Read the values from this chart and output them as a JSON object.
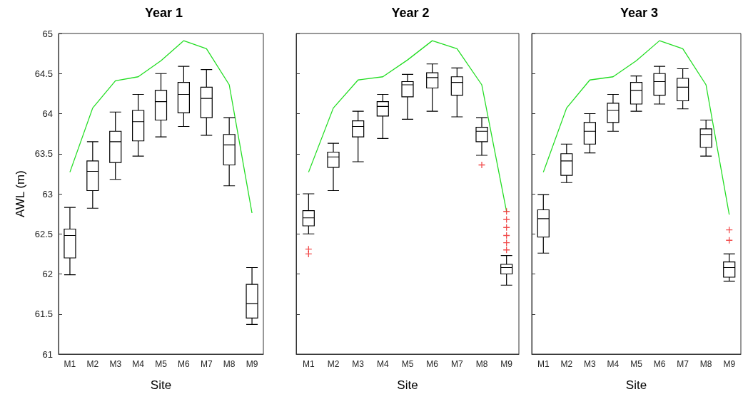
{
  "chart_data": [
    {
      "type": "box",
      "title": "Year 1",
      "xlabel": "Site",
      "ylabel": "AWL (m)",
      "categories": [
        "M1",
        "M2",
        "M3",
        "M4",
        "M5",
        "M6",
        "M7",
        "M8",
        "M9"
      ],
      "ylim": [
        61,
        65
      ],
      "yticks": [
        61,
        61.5,
        62,
        62.5,
        63,
        63.5,
        64,
        64.5,
        65
      ],
      "marker": "none",
      "series": [
        {
          "color": "#000000",
          "boxes": [
            {
              "low": 61.99,
              "q1": 62.2,
              "median": 62.48,
              "q3": 62.56,
              "high": 62.83
            },
            {
              "low": 62.82,
              "q1": 63.04,
              "median": 63.28,
              "q3": 63.41,
              "high": 63.65
            },
            {
              "low": 63.18,
              "q1": 63.39,
              "median": 63.65,
              "q3": 63.78,
              "high": 64.02
            },
            {
              "low": 63.47,
              "q1": 63.66,
              "median": 63.9,
              "q3": 64.04,
              "high": 64.24
            },
            {
              "low": 63.71,
              "q1": 63.92,
              "median": 64.15,
              "q3": 64.29,
              "high": 64.5
            },
            {
              "low": 63.84,
              "q1": 64.01,
              "median": 64.24,
              "q3": 64.39,
              "high": 64.59
            },
            {
              "low": 63.73,
              "q1": 63.95,
              "median": 64.19,
              "q3": 64.33,
              "high": 64.55
            },
            {
              "low": 63.1,
              "q1": 63.36,
              "median": 63.61,
              "q3": 63.74,
              "high": 63.95
            },
            {
              "low": 61.37,
              "q1": 61.45,
              "median": 61.63,
              "q3": 61.87,
              "high": 62.08
            }
          ]
        },
        {
          "type": "line",
          "color": "#22dd22",
          "values": [
            63.27,
            64.07,
            64.41,
            64.46,
            64.66,
            64.91,
            64.81,
            64.36,
            62.76
          ]
        }
      ]
    },
    {
      "type": "box",
      "title": "Year 2",
      "xlabel": "Site",
      "categories": [
        "M1",
        "M2",
        "M3",
        "M4",
        "M5",
        "M6",
        "M7",
        "M8",
        "M9"
      ],
      "ylim": [
        61,
        65
      ],
      "yticks": [
        61,
        61.5,
        62,
        62.5,
        63,
        63.5,
        64,
        64.5,
        65
      ],
      "tick_labels": "x",
      "marker": "none",
      "series": [
        {
          "color": "#000000",
          "boxes": [
            {
              "low": 62.5,
              "q1": 62.6,
              "median": 62.7,
              "q3": 62.79,
              "high": 63.0
            },
            {
              "low": 63.04,
              "q1": 63.33,
              "median": 63.46,
              "q3": 63.52,
              "high": 63.63
            },
            {
              "low": 63.4,
              "q1": 63.71,
              "median": 63.84,
              "q3": 63.91,
              "high": 64.03
            },
            {
              "low": 63.69,
              "q1": 63.97,
              "median": 64.09,
              "q3": 64.15,
              "high": 64.24
            },
            {
              "low": 63.93,
              "q1": 64.21,
              "median": 64.36,
              "q3": 64.4,
              "high": 64.49
            },
            {
              "low": 64.03,
              "q1": 64.32,
              "median": 64.45,
              "q3": 64.51,
              "high": 64.62
            },
            {
              "low": 63.96,
              "q1": 64.23,
              "median": 64.39,
              "q3": 64.46,
              "high": 64.57
            },
            {
              "low": 63.48,
              "q1": 63.65,
              "median": 63.78,
              "q3": 63.83,
              "high": 63.95
            },
            {
              "low": 61.86,
              "q1": 62.0,
              "median": 62.08,
              "q3": 62.12,
              "high": 62.23
            }
          ]
        },
        {
          "type": "line",
          "color": "#22dd22",
          "values": [
            63.27,
            64.07,
            64.42,
            64.46,
            64.67,
            64.91,
            64.81,
            64.36,
            62.78
          ]
        },
        {
          "type": "scatter",
          "color": "#ee2222",
          "marker": "cross",
          "x": [
            "M1",
            "M1",
            "M8",
            "M9",
            "M9",
            "M9",
            "M9",
            "M9",
            "M9"
          ],
          "values": [
            62.31,
            62.25,
            63.36,
            62.78,
            62.68,
            62.58,
            62.48,
            62.39,
            62.3
          ]
        }
      ]
    },
    {
      "type": "box",
      "title": "Year 3",
      "xlabel": "Site",
      "categories": [
        "M1",
        "M2",
        "M3",
        "M4",
        "M5",
        "M6",
        "M7",
        "M8",
        "M9"
      ],
      "ylim": [
        61,
        65
      ],
      "yticks": [
        61,
        61.5,
        62,
        62.5,
        63,
        63.5,
        64,
        64.5,
        65
      ],
      "tick_labels": "x",
      "marker": "none",
      "series": [
        {
          "color": "#000000",
          "boxes": [
            {
              "low": 62.26,
              "q1": 62.46,
              "median": 62.69,
              "q3": 62.8,
              "high": 62.99
            },
            {
              "low": 63.14,
              "q1": 63.23,
              "median": 63.41,
              "q3": 63.5,
              "high": 63.62
            },
            {
              "low": 63.51,
              "q1": 63.62,
              "median": 63.78,
              "q3": 63.89,
              "high": 64.0
            },
            {
              "low": 63.78,
              "q1": 63.89,
              "median": 64.04,
              "q3": 64.13,
              "high": 64.24
            },
            {
              "low": 64.03,
              "q1": 64.12,
              "median": 64.29,
              "q3": 64.39,
              "high": 64.47
            },
            {
              "low": 64.12,
              "q1": 64.23,
              "median": 64.4,
              "q3": 64.5,
              "high": 64.59
            },
            {
              "low": 64.06,
              "q1": 64.16,
              "median": 64.33,
              "q3": 64.44,
              "high": 64.56
            },
            {
              "low": 63.47,
              "q1": 63.58,
              "median": 63.74,
              "q3": 63.81,
              "high": 63.92
            },
            {
              "low": 61.91,
              "q1": 61.96,
              "median": 62.08,
              "q3": 62.15,
              "high": 62.25
            }
          ]
        },
        {
          "type": "line",
          "color": "#22dd22",
          "values": [
            63.27,
            64.07,
            64.42,
            64.46,
            64.66,
            64.91,
            64.81,
            64.36,
            62.74
          ]
        },
        {
          "type": "scatter",
          "color": "#ee2222",
          "marker": "cross",
          "x": [
            "M9",
            "M9"
          ],
          "values": [
            62.55,
            62.42
          ]
        }
      ]
    }
  ]
}
